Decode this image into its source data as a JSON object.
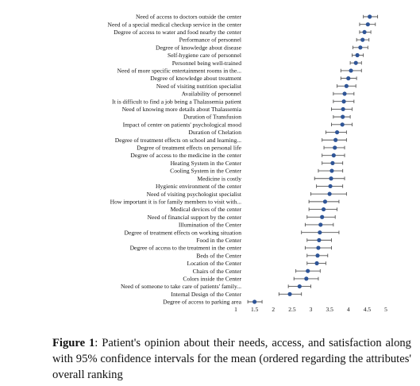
{
  "chart_data": {
    "type": "scatter",
    "title": "",
    "xlabel": "",
    "ylabel": "",
    "xlim": [
      1,
      5
    ],
    "xticks": [
      "1",
      "1.5",
      "2",
      "2.5",
      "3",
      "3.5",
      "4",
      "4.5",
      "5"
    ],
    "grid": false,
    "marker_color": "#2f5597",
    "error_bar_color": "#555555",
    "categories": [
      "Need of access to doctors outside the center",
      "Need of a special medical checkup service in the center",
      "Degree of access to water and food nearby the center",
      "Performance of personnel",
      "Degree of knowledge about disease",
      "Self-hygiene care of personnel",
      "Personnel being well-trained",
      "Need of more specific entertainment rooms in the...",
      "Degree of knowledge about treatment",
      "Need of visiting nutrition specialist",
      "Availability of personnel",
      "It is difficult to find a job being a Thalassemia patient",
      "Need of knowing more details about Thalassemia",
      "Duration of Transfusion",
      "Impact of center on patients' psychological mood",
      "Duration of Chelation",
      "Degree of treatment effects on school and learning...",
      "Degree of treatment effects on personal life",
      "Degree of access to the medicine in the center",
      "Heating System in the Center",
      "Cooling System in the Center",
      "Medicine is costly",
      "Hygienic environment of the center",
      "Need of visiting psychologist specialist",
      "How important it is for family members to visit with...",
      "Medical devices of the center",
      "Need of financial support by the center",
      "Illumination of the Center",
      "Degree of treatment effects on working situation",
      "Food in the Center",
      "Degree of access to the treatment in the center",
      "Beds of the Center",
      "Location of the Center",
      "Chairs of the Center",
      "Colors inside the Center",
      "Need of someone to take care of patients' family...",
      "Internal Design of the Center",
      "Degree of access to parking area"
    ],
    "means": [
      4.57,
      4.52,
      4.43,
      4.38,
      4.32,
      4.24,
      4.2,
      4.07,
      4.0,
      3.95,
      3.9,
      3.88,
      3.86,
      3.85,
      3.84,
      3.7,
      3.66,
      3.64,
      3.61,
      3.58,
      3.56,
      3.54,
      3.52,
      3.5,
      3.38,
      3.34,
      3.3,
      3.26,
      3.24,
      3.22,
      3.2,
      3.18,
      3.16,
      2.92,
      2.88,
      2.7,
      2.44,
      1.5
    ],
    "ci_lower": [
      4.4,
      4.3,
      4.3,
      4.22,
      4.12,
      4.1,
      4.05,
      3.8,
      3.8,
      3.7,
      3.6,
      3.6,
      3.55,
      3.6,
      3.55,
      3.4,
      3.3,
      3.35,
      3.3,
      3.3,
      3.2,
      3.1,
      3.15,
      3.0,
      2.95,
      2.95,
      2.9,
      2.85,
      2.75,
      2.9,
      2.85,
      2.9,
      2.9,
      2.6,
      2.55,
      2.4,
      2.15,
      1.32
    ],
    "ci_upper": [
      4.78,
      4.72,
      4.6,
      4.55,
      4.52,
      4.4,
      4.35,
      4.35,
      4.22,
      4.2,
      4.15,
      4.15,
      4.1,
      4.05,
      4.1,
      3.95,
      3.95,
      3.9,
      3.9,
      3.85,
      3.85,
      3.9,
      3.85,
      3.95,
      3.75,
      3.7,
      3.65,
      3.6,
      3.75,
      3.55,
      3.55,
      3.45,
      3.4,
      3.25,
      3.2,
      3.0,
      2.75,
      1.7
    ]
  },
  "caption": {
    "figure_label": "Figure 1",
    "text": ": Patient's opinion about their needs, access, and satisfaction along with 95% confidence intervals for the mean (ordered regarding the attributes' overall ranking"
  }
}
